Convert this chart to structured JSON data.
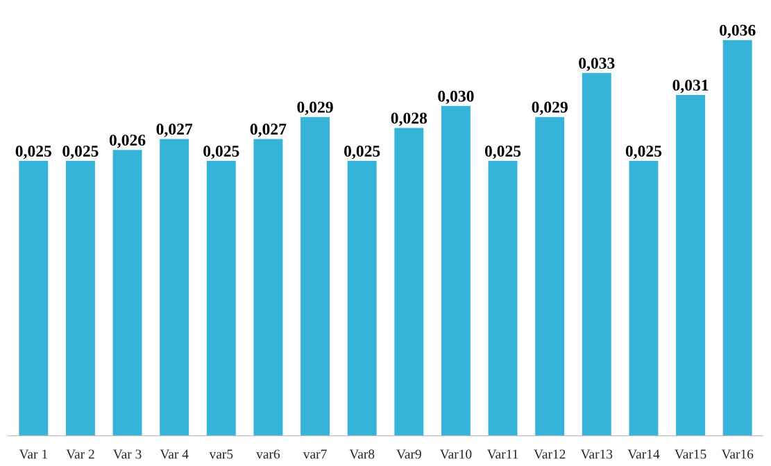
{
  "chart_data": {
    "type": "bar",
    "categories": [
      "Var 1",
      "Var 2",
      "Var 3",
      "Var 4",
      "var5",
      "var6",
      "var7",
      "Var8",
      "Var9",
      "Var10",
      "Var11",
      "Var12",
      "Var13",
      "Var14",
      "Var15",
      "Var16"
    ],
    "values": [
      0.025,
      0.025,
      0.026,
      0.027,
      0.025,
      0.027,
      0.029,
      0.025,
      0.028,
      0.03,
      0.025,
      0.029,
      0.033,
      0.025,
      0.031,
      0.036
    ],
    "value_labels": [
      "0,025",
      "0,025",
      "0,026",
      "0,027",
      "0,025",
      "0,027",
      "0,029",
      "0,025",
      "0,028",
      "0,030",
      "0,025",
      "0,029",
      "0,033",
      "0,025",
      "0,031",
      "0,036"
    ],
    "color": "#35b3d9",
    "grid": false,
    "legend": false
  }
}
